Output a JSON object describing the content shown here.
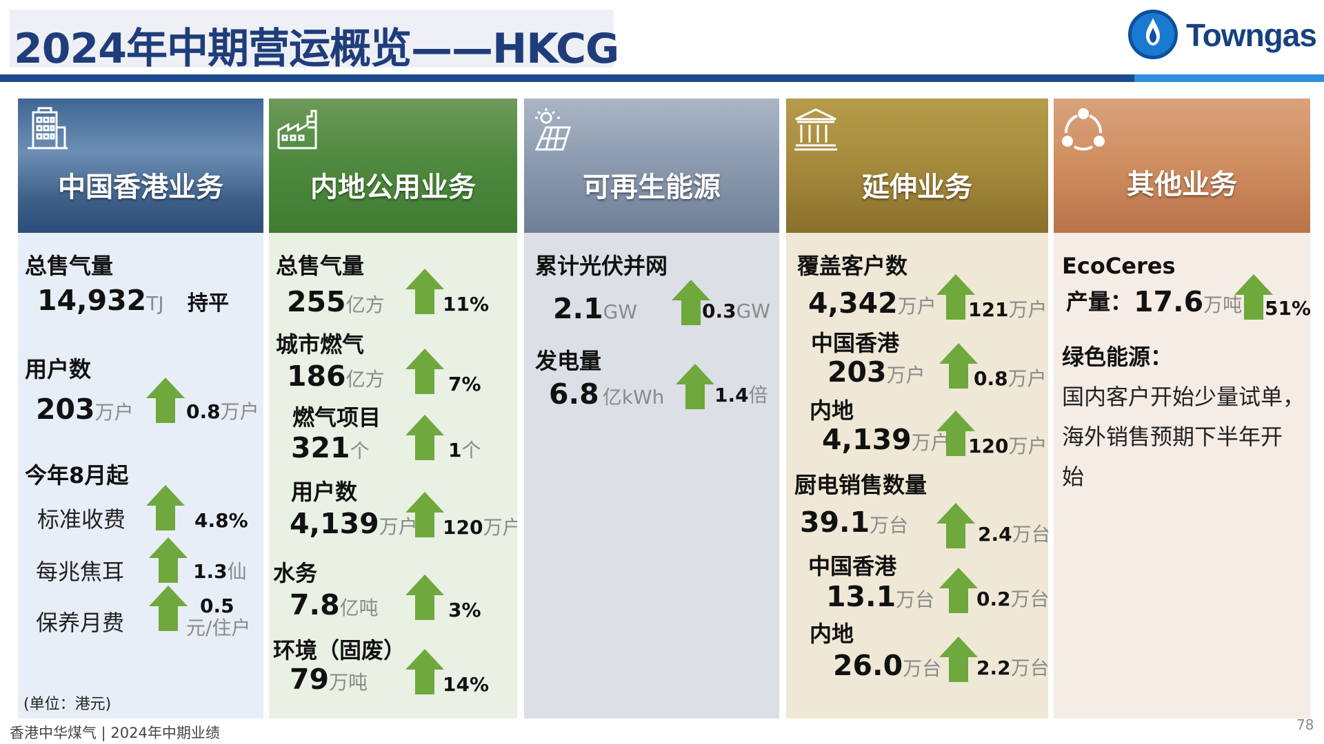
{
  "title": "2024年中期营运概览——HKCG",
  "logo": {
    "text": "Towngas",
    "icon": "flame-logo-icon",
    "colors": {
      "ring": "#0e4fa0",
      "fill": "#1a7ad0"
    }
  },
  "colors": {
    "title": "#1f3d7a",
    "rule_dark": "#1c4a8f",
    "rule_light": "#2e8fde",
    "arrow": "#6fa83c"
  },
  "footer": "香港中华煤气 | 2024年中期业绩",
  "page_number": "78",
  "columns": {
    "hk": {
      "header": "中国香港业务",
      "icon": "building-icon",
      "gas_sales_label": "总售气量",
      "gas_sales_value": "14,932",
      "gas_sales_unit": "TJ",
      "gas_sales_change": "持平",
      "customers_label": "用户数",
      "customers_value": "203",
      "customers_unit": "万户",
      "customers_change": "0.8",
      "customers_change_unit": "万户",
      "tariff_label": "今年8月起",
      "standard_fee_label": "标准收费",
      "standard_fee_change": "4.8%",
      "per_mj_label": "每兆焦耳",
      "per_mj_change": "1.3",
      "per_mj_unit": "仙",
      "maint_label": "保养月费",
      "maint_change": "0.5",
      "maint_unit": "元/住户",
      "unit_note": "(单位：港元)"
    },
    "mainland": {
      "header": "内地公用业务",
      "icon": "factory-icon",
      "gas_sales_label": "总售气量",
      "gas_sales_value": "255",
      "gas_sales_unit": "亿方",
      "gas_sales_change": "11%",
      "city_gas_label": "城市燃气",
      "city_gas_value": "186",
      "city_gas_unit": "亿方",
      "city_gas_change": "7%",
      "projects_label": "燃气项目",
      "projects_value": "321",
      "projects_unit": "个",
      "projects_change": "1",
      "projects_change_unit": "个",
      "users_label": "用户数",
      "users_value": "4,139",
      "users_unit": "万户",
      "users_change": "120",
      "users_change_unit": "万户",
      "water_label": "水务",
      "water_value": "7.8",
      "water_unit": "亿吨",
      "water_change": "3%",
      "env_label": "环境（固废）",
      "env_value": "79",
      "env_unit": "万吨",
      "env_change": "14%"
    },
    "renewable": {
      "header": "可再生能源",
      "icon": "solar-panel-icon",
      "pv_label": "累计光伏并网",
      "pv_value": "2.1",
      "pv_unit": "GW",
      "pv_change": "0.3",
      "pv_change_unit": "GW",
      "power_label": "发电量",
      "power_value": "6.8",
      "power_unit": "亿kWh",
      "power_change": "1.4",
      "power_change_unit": "倍"
    },
    "extended": {
      "header": "延伸业务",
      "icon": "institution-icon",
      "coverage_label": "覆盖客户数",
      "coverage_value": "4,342",
      "coverage_unit": "万户",
      "coverage_change": "121",
      "coverage_change_unit": "万户",
      "hk_label": "中国香港",
      "hk_value": "203",
      "hk_unit": "万户",
      "hk_change": "0.8",
      "hk_change_unit": "万户",
      "ml_label": "内地",
      "ml_value": "4,139",
      "ml_unit": "万户",
      "ml_change": "120",
      "ml_change_unit": "万户",
      "appliance_label": "厨电销售数量",
      "appliance_value": "39.1",
      "appliance_unit": "万台",
      "appliance_change": "2.4",
      "appliance_change_unit": "万台",
      "ap_hk_label": "中国香港",
      "ap_hk_value": "13.1",
      "ap_hk_unit": "万台",
      "ap_hk_change": "0.2",
      "ap_hk_change_unit": "万台",
      "ap_ml_label": "内地",
      "ap_ml_value": "26.0",
      "ap_ml_unit": "万台",
      "ap_ml_change": "2.2",
      "ap_ml_change_unit": "万台"
    },
    "other": {
      "header": "其他业务",
      "icon": "network-cycle-icon",
      "ecoceres_label": "EcoCeres",
      "output_label": "产量：",
      "output_value": "17.6",
      "output_unit": "万吨",
      "output_change": "51%",
      "green_label": "绿色能源：",
      "green_line1": "国内客户开始少量试单，",
      "green_line2": "海外销售预期下半年开",
      "green_line3": "始"
    }
  }
}
